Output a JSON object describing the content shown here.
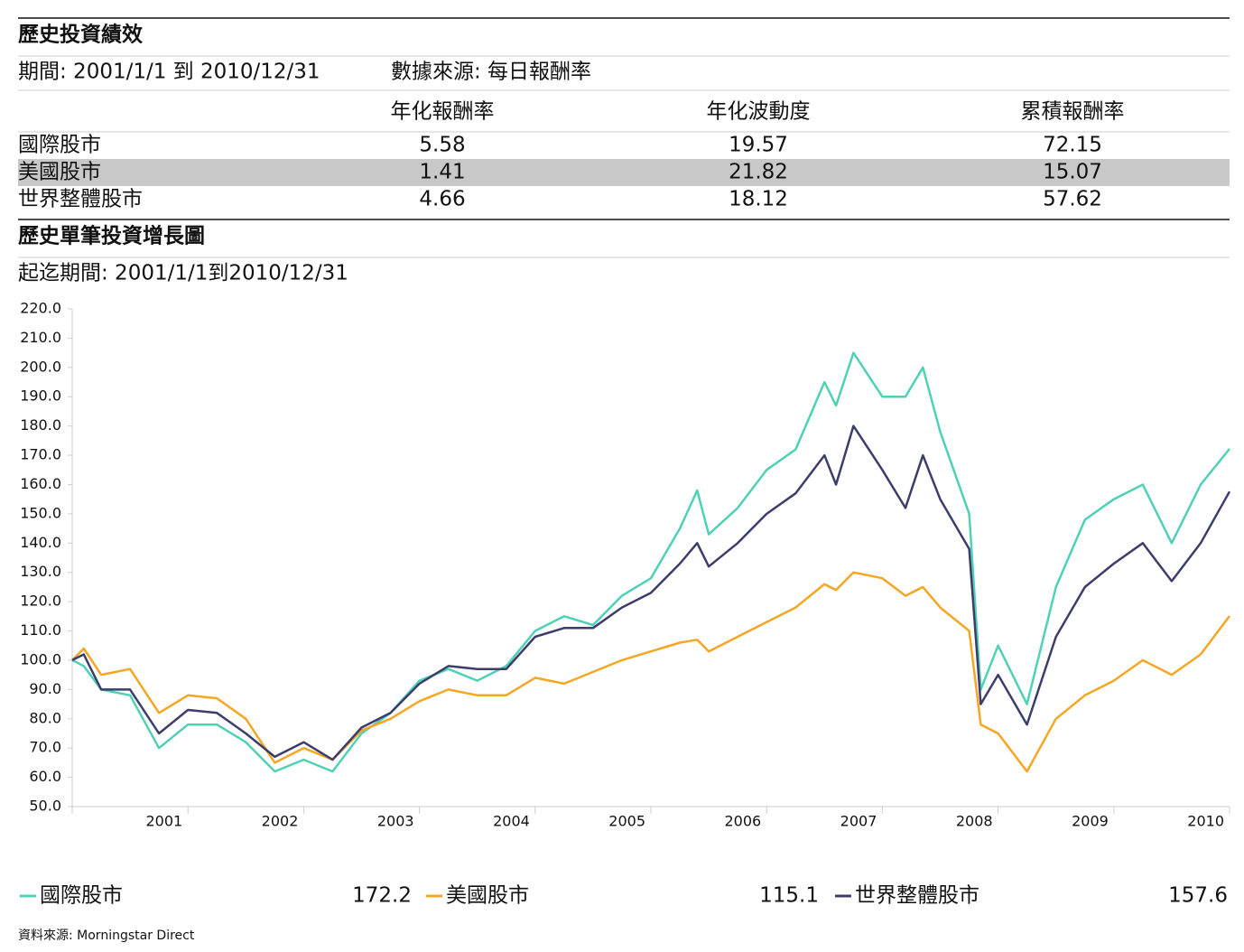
{
  "report": {
    "title": "歷史投資績效",
    "period": "期間: 2001/1/1 到 2010/12/31",
    "source_note": "數據來源: 每日報酬率",
    "table": {
      "columns": [
        "年化報酬率",
        "年化波動度",
        "累積報酬率"
      ],
      "rows": [
        {
          "name": "國際股市",
          "values": [
            5.58,
            19.57,
            72.15
          ]
        },
        {
          "name": "美國股市",
          "values": [
            1.41,
            21.82,
            15.07
          ]
        },
        {
          "name": "世界整體股市",
          "values": [
            4.66,
            18.12,
            57.62
          ]
        }
      ]
    },
    "footer": "資料來源: Morningstar Direct"
  },
  "chart_data": {
    "type": "line",
    "title": "歷史單筆投資增長圖",
    "subtitle": "起迄期間: 2001/1/1到2010/12/31",
    "x": [
      2001,
      2001.1,
      2001.25,
      2001.5,
      2001.75,
      2002,
      2002.25,
      2002.5,
      2002.75,
      2003,
      2003.25,
      2003.5,
      2003.75,
      2004,
      2004.25,
      2004.5,
      2004.75,
      2005,
      2005.25,
      2005.5,
      2005.75,
      2006,
      2006.25,
      2006.4,
      2006.5,
      2006.75,
      2007,
      2007.25,
      2007.5,
      2007.6,
      2007.75,
      2008,
      2008.2,
      2008.35,
      2008.5,
      2008.75,
      2008.85,
      2009,
      2009.25,
      2009.5,
      2009.75,
      2010,
      2010.25,
      2010.5,
      2010.75,
      2011
    ],
    "xlim": [
      2001,
      2011
    ],
    "x_bands": [
      "2001",
      "2002",
      "2003",
      "2004",
      "2005",
      "2006",
      "2007",
      "2008",
      "2009",
      "2010"
    ],
    "ylim": [
      50,
      220
    ],
    "yticks": [
      {
        "value": 220,
        "label": "220.0"
      },
      {
        "value": 210,
        "label": "210.0"
      },
      {
        "value": 200,
        "label": "200.0"
      },
      {
        "value": 190,
        "label": "190.0"
      },
      {
        "value": 180,
        "label": "180.0"
      },
      {
        "value": 170,
        "label": "170.0"
      },
      {
        "value": 160,
        "label": "160.0"
      },
      {
        "value": 150,
        "label": "150.0"
      },
      {
        "value": 140,
        "label": "140.0"
      },
      {
        "value": 130,
        "label": "130.0"
      },
      {
        "value": 120,
        "label": "120.0"
      },
      {
        "value": 110,
        "label": "110.0"
      },
      {
        "value": 100,
        "label": "100.0"
      },
      {
        "value": 90,
        "label": "90.0"
      },
      {
        "value": 80,
        "label": "80.0"
      },
      {
        "value": 70,
        "label": "70.0"
      },
      {
        "value": 60,
        "label": "60.0"
      },
      {
        "value": 50,
        "label": "50.0"
      }
    ],
    "series": [
      {
        "name": "國際股市",
        "color": "#4fd1b5",
        "values": [
          100,
          98,
          90,
          88,
          70,
          78,
          78,
          72,
          62,
          66,
          62,
          75,
          82,
          93,
          97,
          93,
          98,
          110,
          115,
          112,
          122,
          128,
          145,
          158,
          143,
          152,
          165,
          172,
          195,
          187,
          205,
          190,
          190,
          200,
          178,
          150,
          90,
          105,
          85,
          125,
          148,
          155,
          160,
          140,
          160,
          172.2
        ]
      },
      {
        "name": "美國股市",
        "color": "#f5a623",
        "values": [
          100,
          104,
          95,
          97,
          82,
          88,
          87,
          80,
          65,
          70,
          66,
          76,
          80,
          86,
          90,
          88,
          88,
          94,
          92,
          96,
          100,
          103,
          106,
          107,
          103,
          108,
          113,
          118,
          126,
          124,
          130,
          128,
          122,
          125,
          118,
          110,
          78,
          75,
          62,
          80,
          88,
          93,
          100,
          95,
          102,
          115.1
        ]
      },
      {
        "name": "世界整體股市",
        "color": "#3d3d6b",
        "values": [
          100,
          102,
          90,
          90,
          75,
          83,
          82,
          75,
          67,
          72,
          66,
          77,
          82,
          92,
          98,
          97,
          97,
          108,
          111,
          111,
          118,
          123,
          133,
          140,
          132,
          140,
          150,
          157,
          170,
          160,
          180,
          165,
          152,
          170,
          155,
          138,
          85,
          95,
          78,
          108,
          125,
          133,
          140,
          127,
          140,
          157.6
        ]
      }
    ],
    "grid": false
  }
}
